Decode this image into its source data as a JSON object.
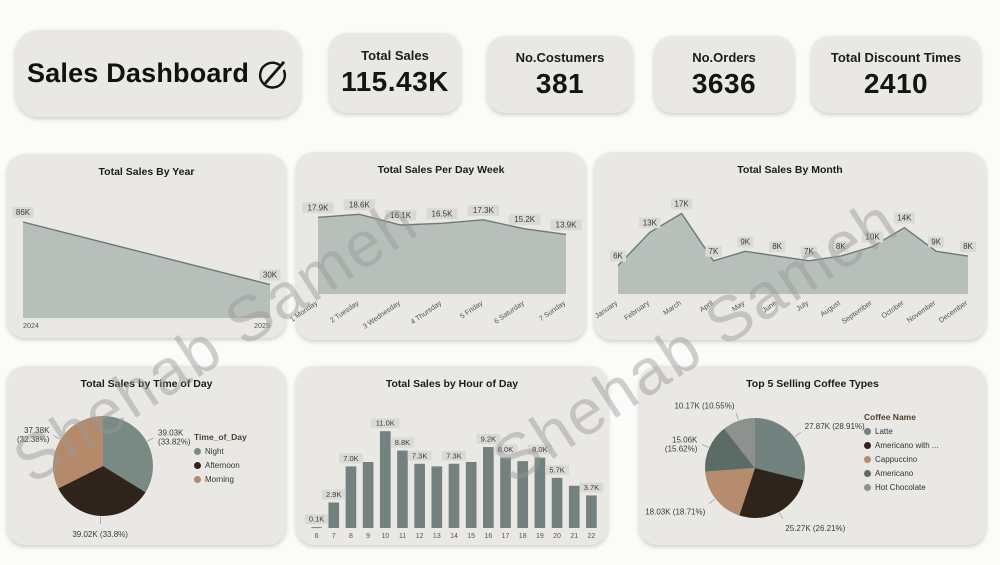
{
  "watermark": "Shehab Sameh",
  "header": {
    "title": "Sales Dashboard",
    "kpis": [
      {
        "label": "Total Sales",
        "value": "115.43K"
      },
      {
        "label": "No.Costumers",
        "value": "381"
      },
      {
        "label": "No.Orders",
        "value": "3636"
      },
      {
        "label": "Total Discount Times",
        "value": "2410"
      }
    ]
  },
  "colors": {
    "page_bg": "#fbfbf9",
    "card_bg": "#e9e8e5",
    "area_fill": "#b7bfbb",
    "area_line": "#6b7c77",
    "bar": "#73827e",
    "label_bg": "#d9d9d5",
    "label_text": "#3a3a3a",
    "axis_text": "#555555",
    "legend_title": "#53402e",
    "callout_text": "#3a3a3a"
  },
  "chart_data": [
    {
      "type": "area",
      "title": "Total Sales By Year",
      "categories": [
        "2024",
        "2025"
      ],
      "values": [
        86,
        30
      ],
      "labels": [
        "86K",
        "30K"
      ],
      "ylim": [
        0,
        95
      ],
      "rotate_x": false
    },
    {
      "type": "area",
      "title": "Total Sales Per Day Week",
      "categories": [
        "1 Monday",
        "2 Tuesday",
        "3 Wednesday",
        "4 Thursday",
        "5 Friday",
        "6 Saturday",
        "7 Sunday"
      ],
      "values": [
        17.9,
        18.6,
        16.1,
        16.5,
        17.3,
        15.2,
        13.9
      ],
      "labels": [
        "17.9K",
        "18.6K",
        "16.1K",
        "16.5K",
        "17.3K",
        "15.2K",
        "13.9K"
      ],
      "ylim": [
        0,
        21
      ],
      "rotate_x": true
    },
    {
      "type": "area",
      "title": "Total Sales By Month",
      "categories": [
        "January",
        "February",
        "March",
        "April",
        "May",
        "June",
        "July",
        "August",
        "September",
        "October",
        "November",
        "December"
      ],
      "values": [
        6,
        13,
        17,
        7,
        9,
        8,
        7,
        8,
        10,
        14,
        9,
        8
      ],
      "labels": [
        "6K",
        "13K",
        "17K",
        "7K",
        "9K",
        "8K",
        "7K",
        "8K",
        "10K",
        "14K",
        "9K",
        "8K"
      ],
      "ylim": [
        0,
        19
      ],
      "rotate_x": true
    },
    {
      "type": "pie",
      "title": "Total Sales by Time of Day",
      "legend_title": "Time_of_Day",
      "slices": [
        {
          "name": "Night",
          "value": 39.03,
          "pct": 33.82,
          "callout": "39.03K\n(33.82%)",
          "color": "#798a85"
        },
        {
          "name": "Afternoon",
          "value": 39.02,
          "pct": 33.8,
          "callout": "39.02K (33.8%)",
          "color": "#2e241b"
        },
        {
          "name": "Morning",
          "value": 37.38,
          "pct": 32.38,
          "callout": "37.38K\n(32.38%)",
          "color": "#b48a6b"
        }
      ]
    },
    {
      "type": "bar",
      "title": "Total Sales by Hour of Day",
      "categories": [
        "6",
        "7",
        "8",
        "9",
        "10",
        "11",
        "12",
        "13",
        "14",
        "15",
        "16",
        "17",
        "18",
        "19",
        "20",
        "21",
        "22"
      ],
      "values": [
        0.1,
        2.9,
        7.0,
        7.5,
        11.0,
        8.8,
        7.3,
        7.0,
        7.3,
        7.5,
        9.2,
        8.0,
        7.6,
        8.0,
        5.7,
        4.8,
        3.7
      ],
      "labels": [
        "0.1K",
        "2.9K",
        "7.0K",
        null,
        "11.0K",
        "8.8K",
        "7.3K",
        null,
        "7.3K",
        null,
        "9.2K",
        "8.0K",
        null,
        "8.0K",
        "5.7K",
        null,
        "3.7K"
      ],
      "ylim": [
        0,
        12.5
      ]
    },
    {
      "type": "pie",
      "title": "Top 5 Selling Coffee Types",
      "legend_title": "Coffee Name",
      "slices": [
        {
          "name": "Latte",
          "value": 27.87,
          "pct": 28.91,
          "callout": "27.87K (28.91%)",
          "color": "#72837f"
        },
        {
          "name": "Americano with ...",
          "value": 25.27,
          "pct": 26.21,
          "callout": "25.27K (26.21%)",
          "color": "#2e241b"
        },
        {
          "name": "Cappuccino",
          "value": 18.03,
          "pct": 18.71,
          "callout": "18.03K (18.71%)",
          "color": "#b58c6d"
        },
        {
          "name": "Americano",
          "value": 15.06,
          "pct": 15.62,
          "callout": "15.06K\n(15.62%)",
          "color": "#5d6b67"
        },
        {
          "name": "Hot Chocolate",
          "value": 10.17,
          "pct": 10.55,
          "callout": "10.17K (10.55%)",
          "color": "#8d928f"
        }
      ]
    }
  ]
}
